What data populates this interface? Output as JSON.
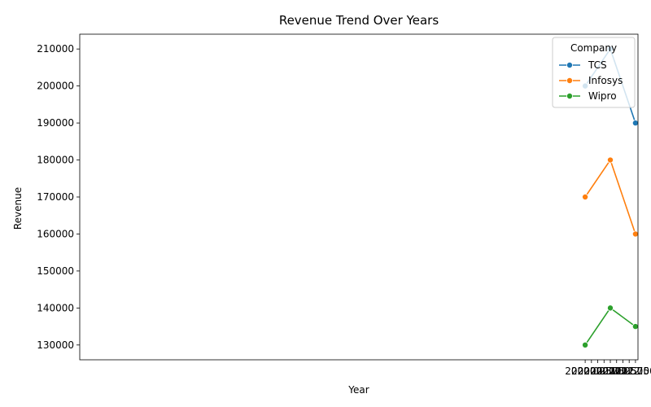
{
  "chart_data": {
    "type": "line",
    "title": "Revenue Trend Over Years",
    "xlabel": "Year",
    "ylabel": "Revenue",
    "x": [
      2020,
      2021,
      2022
    ],
    "xlim": [
      1999.9,
      2022.1
    ],
    "ylim": [
      126000,
      214000
    ],
    "xticks": [
      "2020.00",
      "2020.25",
      "2020.50",
      "2020.75",
      "2021.00",
      "2021.25",
      "2021.50",
      "2021.75",
      "2022.00"
    ],
    "xtick_values": [
      2020,
      2020.25,
      2020.5,
      2020.75,
      2021,
      2021.25,
      2021.5,
      2021.75,
      2022
    ],
    "yticks": [
      "130000",
      "140000",
      "150000",
      "160000",
      "170000",
      "180000",
      "190000",
      "200000",
      "210000"
    ],
    "ytick_values": [
      130000,
      140000,
      150000,
      160000,
      170000,
      180000,
      190000,
      200000,
      210000
    ],
    "grid": false,
    "legend": {
      "title": "Company",
      "position": "top-right"
    },
    "series": [
      {
        "name": "TCS",
        "color": "#1f77b4",
        "values": [
          200000,
          210000,
          190000
        ]
      },
      {
        "name": "Infosys",
        "color": "#ff7f0e",
        "values": [
          170000,
          180000,
          160000
        ]
      },
      {
        "name": "Wipro",
        "color": "#2ca02c",
        "values": [
          130000,
          140000,
          135000
        ]
      }
    ]
  }
}
